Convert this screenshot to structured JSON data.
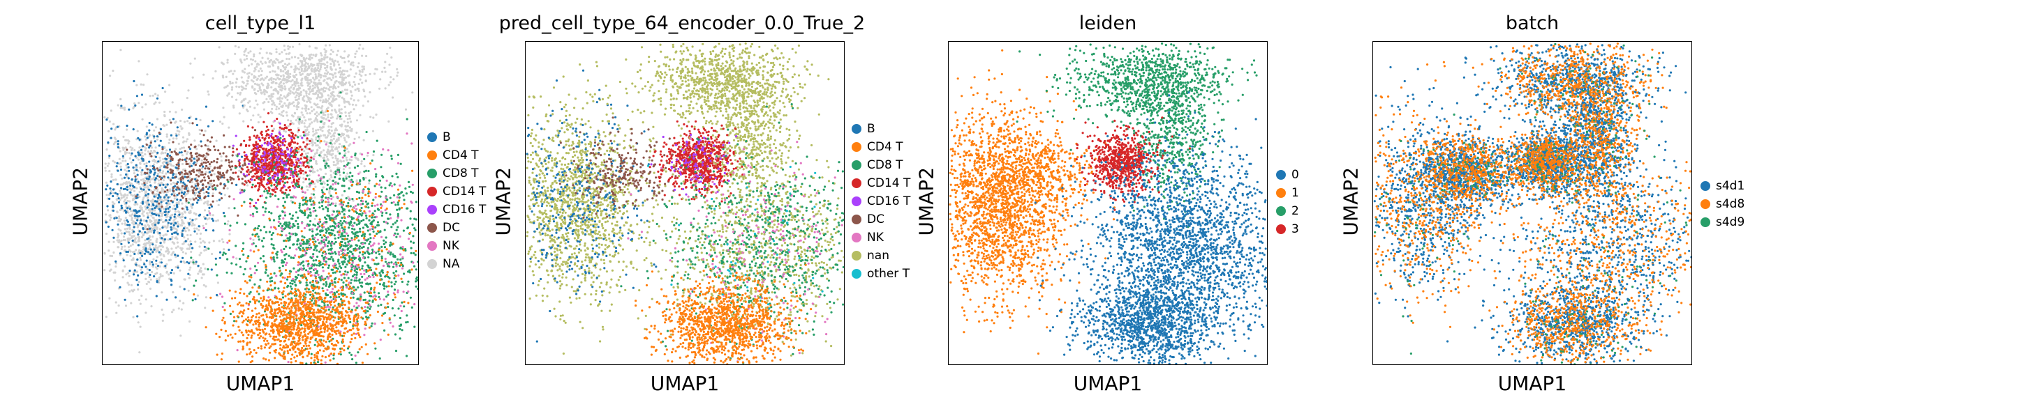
{
  "chart_data": [
    {
      "type": "scatter",
      "title": "cell_type_l1",
      "xlabel": "UMAP1",
      "ylabel": "UMAP2",
      "legend_placement": "right",
      "grid": false,
      "ticks": "none",
      "categories": [
        "B",
        "CD4 T",
        "CD8 T",
        "CD14 T",
        "CD16 T",
        "DC",
        "NK",
        "NA"
      ],
      "colors": [
        "#1f77b4",
        "#ff7f0e",
        "#279e68",
        "#d62728",
        "#aa40fc",
        "#8c564b",
        "#e377c2",
        "#d3d3d3"
      ]
    },
    {
      "type": "scatter",
      "title": "pred_cell_type_64_encoder_0.0_True_2",
      "xlabel": "UMAP1",
      "ylabel": "UMAP2",
      "legend_placement": "right",
      "grid": false,
      "ticks": "none",
      "categories": [
        "B",
        "CD4 T",
        "CD8 T",
        "CD14 T",
        "CD16 T",
        "DC",
        "NK",
        "nan",
        "other T"
      ],
      "colors": [
        "#1f77b4",
        "#ff7f0e",
        "#279e68",
        "#d62728",
        "#aa40fc",
        "#8c564b",
        "#e377c2",
        "#b5bd61",
        "#17becf"
      ]
    },
    {
      "type": "scatter",
      "title": "leiden",
      "xlabel": "UMAP1",
      "ylabel": "UMAP2",
      "legend_placement": "right",
      "grid": false,
      "ticks": "none",
      "categories": [
        "0",
        "1",
        "2",
        "3"
      ],
      "colors": [
        "#1f77b4",
        "#ff7f0e",
        "#279e68",
        "#d62728"
      ]
    },
    {
      "type": "scatter",
      "title": "batch",
      "xlabel": "UMAP1",
      "ylabel": "UMAP2",
      "legend_placement": "right",
      "grid": false,
      "ticks": "none",
      "categories": [
        "s4d1",
        "s4d8",
        "s4d9"
      ],
      "colors": [
        "#1f77b4",
        "#ff7f0e",
        "#279e68"
      ]
    }
  ]
}
